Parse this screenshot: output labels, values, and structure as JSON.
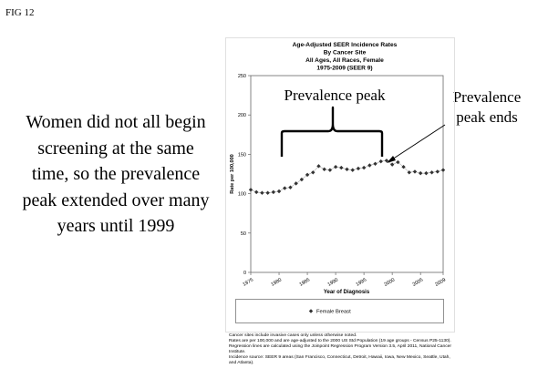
{
  "slide": {
    "fig_label": "FIG 12",
    "left_text": "Women did not all begin screening at the same time, so the prevalence peak extended over many years until 1999",
    "annotation_brace": "Prevalence peak",
    "annotation_arrow": "Prevalence peak ends"
  },
  "chart_data": {
    "type": "line",
    "title_lines": [
      "Age-Adjusted SEER Incidence Rates",
      "By Cancer Site",
      "All Ages, All Races, Female",
      "1975-2009  (SEER 9)"
    ],
    "xlabel": "Year of Diagnosis",
    "ylabel": "Rate per 100,000",
    "xlim": [
      1975,
      2009
    ],
    "ylim": [
      0,
      250
    ],
    "x_ticks": [
      1975,
      1980,
      1985,
      1990,
      1995,
      2000,
      2005,
      2009
    ],
    "y_ticks": [
      0,
      50,
      100,
      150,
      200,
      250
    ],
    "grid": false,
    "legend": "bottom",
    "colors": {
      "series": "#333333",
      "axis": "#555555"
    },
    "series": [
      {
        "name": "Female Breast",
        "marker": "diamond",
        "x": [
          1975,
          1976,
          1977,
          1978,
          1979,
          1980,
          1981,
          1982,
          1983,
          1984,
          1985,
          1986,
          1987,
          1988,
          1989,
          1990,
          1991,
          1992,
          1993,
          1994,
          1995,
          1996,
          1997,
          1998,
          1999,
          2000,
          2001,
          2002,
          2003,
          2004,
          2005,
          2006,
          2007,
          2008,
          2009
        ],
        "y": [
          105,
          102,
          101,
          101,
          102,
          103,
          107,
          108,
          113,
          118,
          124,
          127,
          135,
          131,
          130,
          134,
          133,
          131,
          130,
          132,
          133,
          136,
          138,
          141,
          142,
          137,
          140,
          134,
          127,
          128,
          126,
          126,
          127,
          128,
          130
        ]
      }
    ]
  },
  "footnotes": [
    "Cancer sites include invasive cases only unless otherwise noted.",
    "Rates are per 100,000 and are age-adjusted to the 2000 US Std Population (19 age groups - Census P25-1130). Regression lines are calculated using the Joinpoint Regression Program Version 3.5, April 2011, National Cancer Institute.",
    "Incidence source: SEER 9 areas (San Francisco, Connecticut, Detroit, Hawaii, Iowa, New Mexico, Seattle, Utah, and Atlanta)."
  ]
}
